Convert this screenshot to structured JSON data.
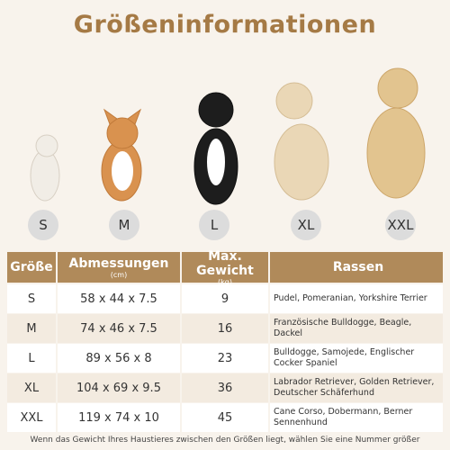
{
  "title": "Größeninformationen",
  "sizes": [
    "S",
    "M",
    "L",
    "XL",
    "XXL"
  ],
  "table": {
    "header": {
      "size": "Größe",
      "dimensions": "Abmessungen",
      "dimensions_unit": "(cm)",
      "weight": "Max. Gewicht",
      "weight_unit": "(kg)",
      "breeds": "Rassen"
    },
    "rows": [
      [
        "S",
        "58 x 44 x 7.5",
        "9",
        "Pudel, Pomeranian, Yorkshire Terrier"
      ],
      [
        "M",
        "74 x 46 x 7.5",
        "16",
        "Französische Bulldogge, Beagle, Dackel"
      ],
      [
        "L",
        "89 x 56 x 8",
        "23",
        "Bulldogge, Samojede, Englischer Cocker Spaniel"
      ],
      [
        "XL",
        "104 x 69 x 9.5",
        "36",
        "Labrador Retriever, Golden Retriever, Deutscher Schäferhund"
      ],
      [
        "XXL",
        "119 x 74 x 10",
        "45",
        "Cane Corso, Dobermann, Berner Sennenhund"
      ]
    ]
  },
  "footer": "Wenn das Gewicht Ihres Haustieres zwischen den Größen liegt, wählen Sie eine Nummer größer"
}
